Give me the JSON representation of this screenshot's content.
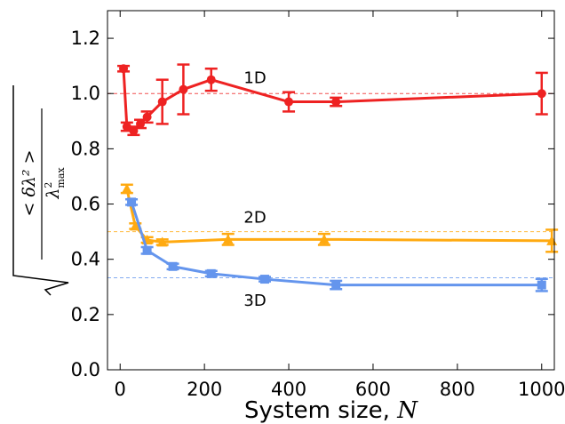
{
  "chart_data": {
    "type": "line",
    "xlabel": "System size, ",
    "xlabel_var": "N",
    "ylabel": {
      "numerator": "< δλ² >",
      "denominator": "λ",
      "denominator_sup": "2",
      "denominator_sub": "max"
    },
    "xlim": [
      -30,
      1030
    ],
    "ylim": [
      0.0,
      1.3
    ],
    "xticks": [
      0,
      200,
      400,
      600,
      800,
      1000
    ],
    "xtick_labels": [
      "0",
      "200",
      "400",
      "600",
      "800",
      "1000"
    ],
    "yticks": [
      0.0,
      0.2,
      0.4,
      0.6,
      0.8,
      1.0,
      1.2
    ],
    "ytick_labels": [
      "0.0",
      "0.2",
      "0.4",
      "0.6",
      "0.8",
      "1.0",
      "1.2"
    ],
    "grid": false,
    "series": [
      {
        "name": "1D",
        "color": "#ee2222",
        "marker": "circle",
        "label_at": [
          320,
          1.06
        ],
        "reference_y": 1.0,
        "points": [
          {
            "x": 8,
            "y": 1.09,
            "err": 0.01
          },
          {
            "x": 16,
            "y": 0.88,
            "err": 0.015
          },
          {
            "x": 32,
            "y": 0.865,
            "err": 0.015
          },
          {
            "x": 48,
            "y": 0.89,
            "err": 0.015
          },
          {
            "x": 64,
            "y": 0.915,
            "err": 0.02
          },
          {
            "x": 100,
            "y": 0.97,
            "err": 0.08
          },
          {
            "x": 150,
            "y": 1.015,
            "err": 0.09
          },
          {
            "x": 216,
            "y": 1.05,
            "err": 0.04
          },
          {
            "x": 400,
            "y": 0.97,
            "err": 0.035
          },
          {
            "x": 512,
            "y": 0.97,
            "err": 0.015
          },
          {
            "x": 1000,
            "y": 1.0,
            "err": 0.075
          }
        ]
      },
      {
        "name": "2D",
        "color": "#ffaa11",
        "marker": "triangle",
        "label_at": [
          320,
          0.555
        ],
        "reference_y": 0.5,
        "points": [
          {
            "x": 16,
            "y": 0.655,
            "err": 0.015
          },
          {
            "x": 36,
            "y": 0.52,
            "err": 0.01
          },
          {
            "x": 64,
            "y": 0.47,
            "err": 0.01
          },
          {
            "x": 100,
            "y": 0.462,
            "err": 0.01
          },
          {
            "x": 256,
            "y": 0.472,
            "err": 0.02
          },
          {
            "x": 484,
            "y": 0.472,
            "err": 0.02
          },
          {
            "x": 1024,
            "y": 0.467,
            "err": 0.04
          }
        ]
      },
      {
        "name": "3D",
        "color": "#6495ed",
        "marker": "square",
        "label_at": [
          320,
          0.255
        ],
        "reference_y": 0.333,
        "points": [
          {
            "x": 27,
            "y": 0.607,
            "err": 0.01
          },
          {
            "x": 64,
            "y": 0.432,
            "err": 0.012
          },
          {
            "x": 125,
            "y": 0.374,
            "err": 0.01
          },
          {
            "x": 216,
            "y": 0.348,
            "err": 0.01
          },
          {
            "x": 343,
            "y": 0.328,
            "err": 0.008
          },
          {
            "x": 512,
            "y": 0.307,
            "err": 0.015
          },
          {
            "x": 1000,
            "y": 0.307,
            "err": 0.022
          }
        ]
      }
    ]
  }
}
